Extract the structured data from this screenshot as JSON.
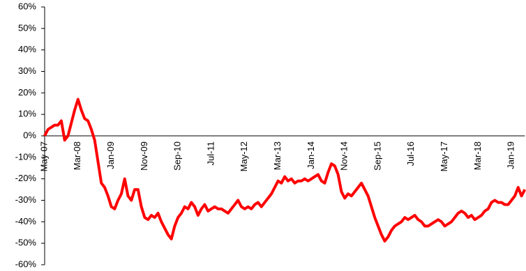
{
  "chart_data": {
    "type": "line",
    "categories": [
      "May-07",
      null,
      null,
      null,
      null,
      null,
      null,
      null,
      null,
      null,
      "Mar-08",
      null,
      null,
      null,
      null,
      null,
      null,
      null,
      null,
      null,
      "Jan-09",
      null,
      null,
      null,
      null,
      null,
      null,
      null,
      null,
      null,
      "Nov-09",
      null,
      null,
      null,
      null,
      null,
      null,
      null,
      null,
      null,
      "Sep-10",
      null,
      null,
      null,
      null,
      null,
      null,
      null,
      null,
      null,
      "Jul-11",
      null,
      null,
      null,
      null,
      null,
      null,
      null,
      null,
      null,
      "May-12",
      null,
      null,
      null,
      null,
      null,
      null,
      null,
      null,
      null,
      "Mar-13",
      null,
      null,
      null,
      null,
      null,
      null,
      null,
      null,
      null,
      "Jan-14",
      null,
      null,
      null,
      null,
      null,
      null,
      null,
      null,
      null,
      "Nov-14",
      null,
      null,
      null,
      null,
      null,
      null,
      null,
      null,
      null,
      "Sep-15",
      null,
      null,
      null,
      null,
      null,
      null,
      null,
      null,
      null,
      "Jul-16",
      null,
      null,
      null,
      null,
      null,
      null,
      null,
      null,
      null,
      "May-17",
      null,
      null,
      null,
      null,
      null,
      null,
      null,
      null,
      null,
      "Mar-18",
      null,
      null,
      null,
      null,
      null,
      null,
      null,
      null,
      null,
      "Jan-19",
      null,
      null,
      null,
      null
    ],
    "series": [
      {
        "color": "#ff0000",
        "values": [
          0,
          3,
          4,
          5,
          5,
          7,
          -2,
          0,
          6,
          12,
          17,
          12,
          8,
          7,
          3,
          -2,
          -12,
          -22,
          -24,
          -28,
          -33,
          -34,
          -30,
          -27,
          -20,
          -28,
          -30,
          -25,
          -25,
          -33,
          -38,
          -39,
          -37,
          -38,
          -36,
          -40,
          -43,
          -46,
          -48,
          -42,
          -38,
          -36,
          -33,
          -34,
          -31,
          -33,
          -37,
          -34,
          -32,
          -35,
          -34,
          -33,
          -34,
          -34,
          -35,
          -36,
          -34,
          -32,
          -30,
          -33,
          -34,
          -33,
          -34,
          -32,
          -31,
          -33,
          -31,
          -29,
          -27,
          -24,
          -21,
          -22,
          -19,
          -21,
          -20,
          -22,
          -21,
          -21,
          -20,
          -21,
          -20,
          -19,
          -18,
          -21,
          -22,
          -17,
          -13,
          -14,
          -18,
          -26,
          -29,
          -27,
          -28,
          -26,
          -24,
          -22,
          -25,
          -28,
          -33,
          -38,
          -42,
          -46,
          -49,
          -47,
          -44,
          -42,
          -41,
          -40,
          -38,
          -39,
          -38,
          -37,
          -39,
          -40,
          -42,
          -42,
          -41,
          -40,
          -39,
          -40,
          -42,
          -41,
          -40,
          -38,
          -36,
          -35,
          -36,
          -38,
          -37,
          -39,
          -38,
          -37,
          -35,
          -34,
          -31,
          -30,
          -31,
          -31,
          -32,
          -32,
          -30,
          -28,
          -24,
          -28,
          -25
        ]
      }
    ],
    "ylim": [
      -60,
      60
    ],
    "yticks": [
      {
        "value": -60,
        "label": "-60%"
      },
      {
        "value": -50,
        "label": "-50%"
      },
      {
        "value": -40,
        "label": "-40%"
      },
      {
        "value": -30,
        "label": "-30%"
      },
      {
        "value": -20,
        "label": "-20%"
      },
      {
        "value": -10,
        "label": "-10%"
      },
      {
        "value": 0,
        "label": "0%"
      },
      {
        "value": 10,
        "label": "10%"
      },
      {
        "value": 20,
        "label": "20%"
      },
      {
        "value": 30,
        "label": "30%"
      },
      {
        "value": 40,
        "label": "40%"
      },
      {
        "value": 50,
        "label": "50%"
      },
      {
        "value": 60,
        "label": "60%"
      }
    ],
    "grid": false
  }
}
